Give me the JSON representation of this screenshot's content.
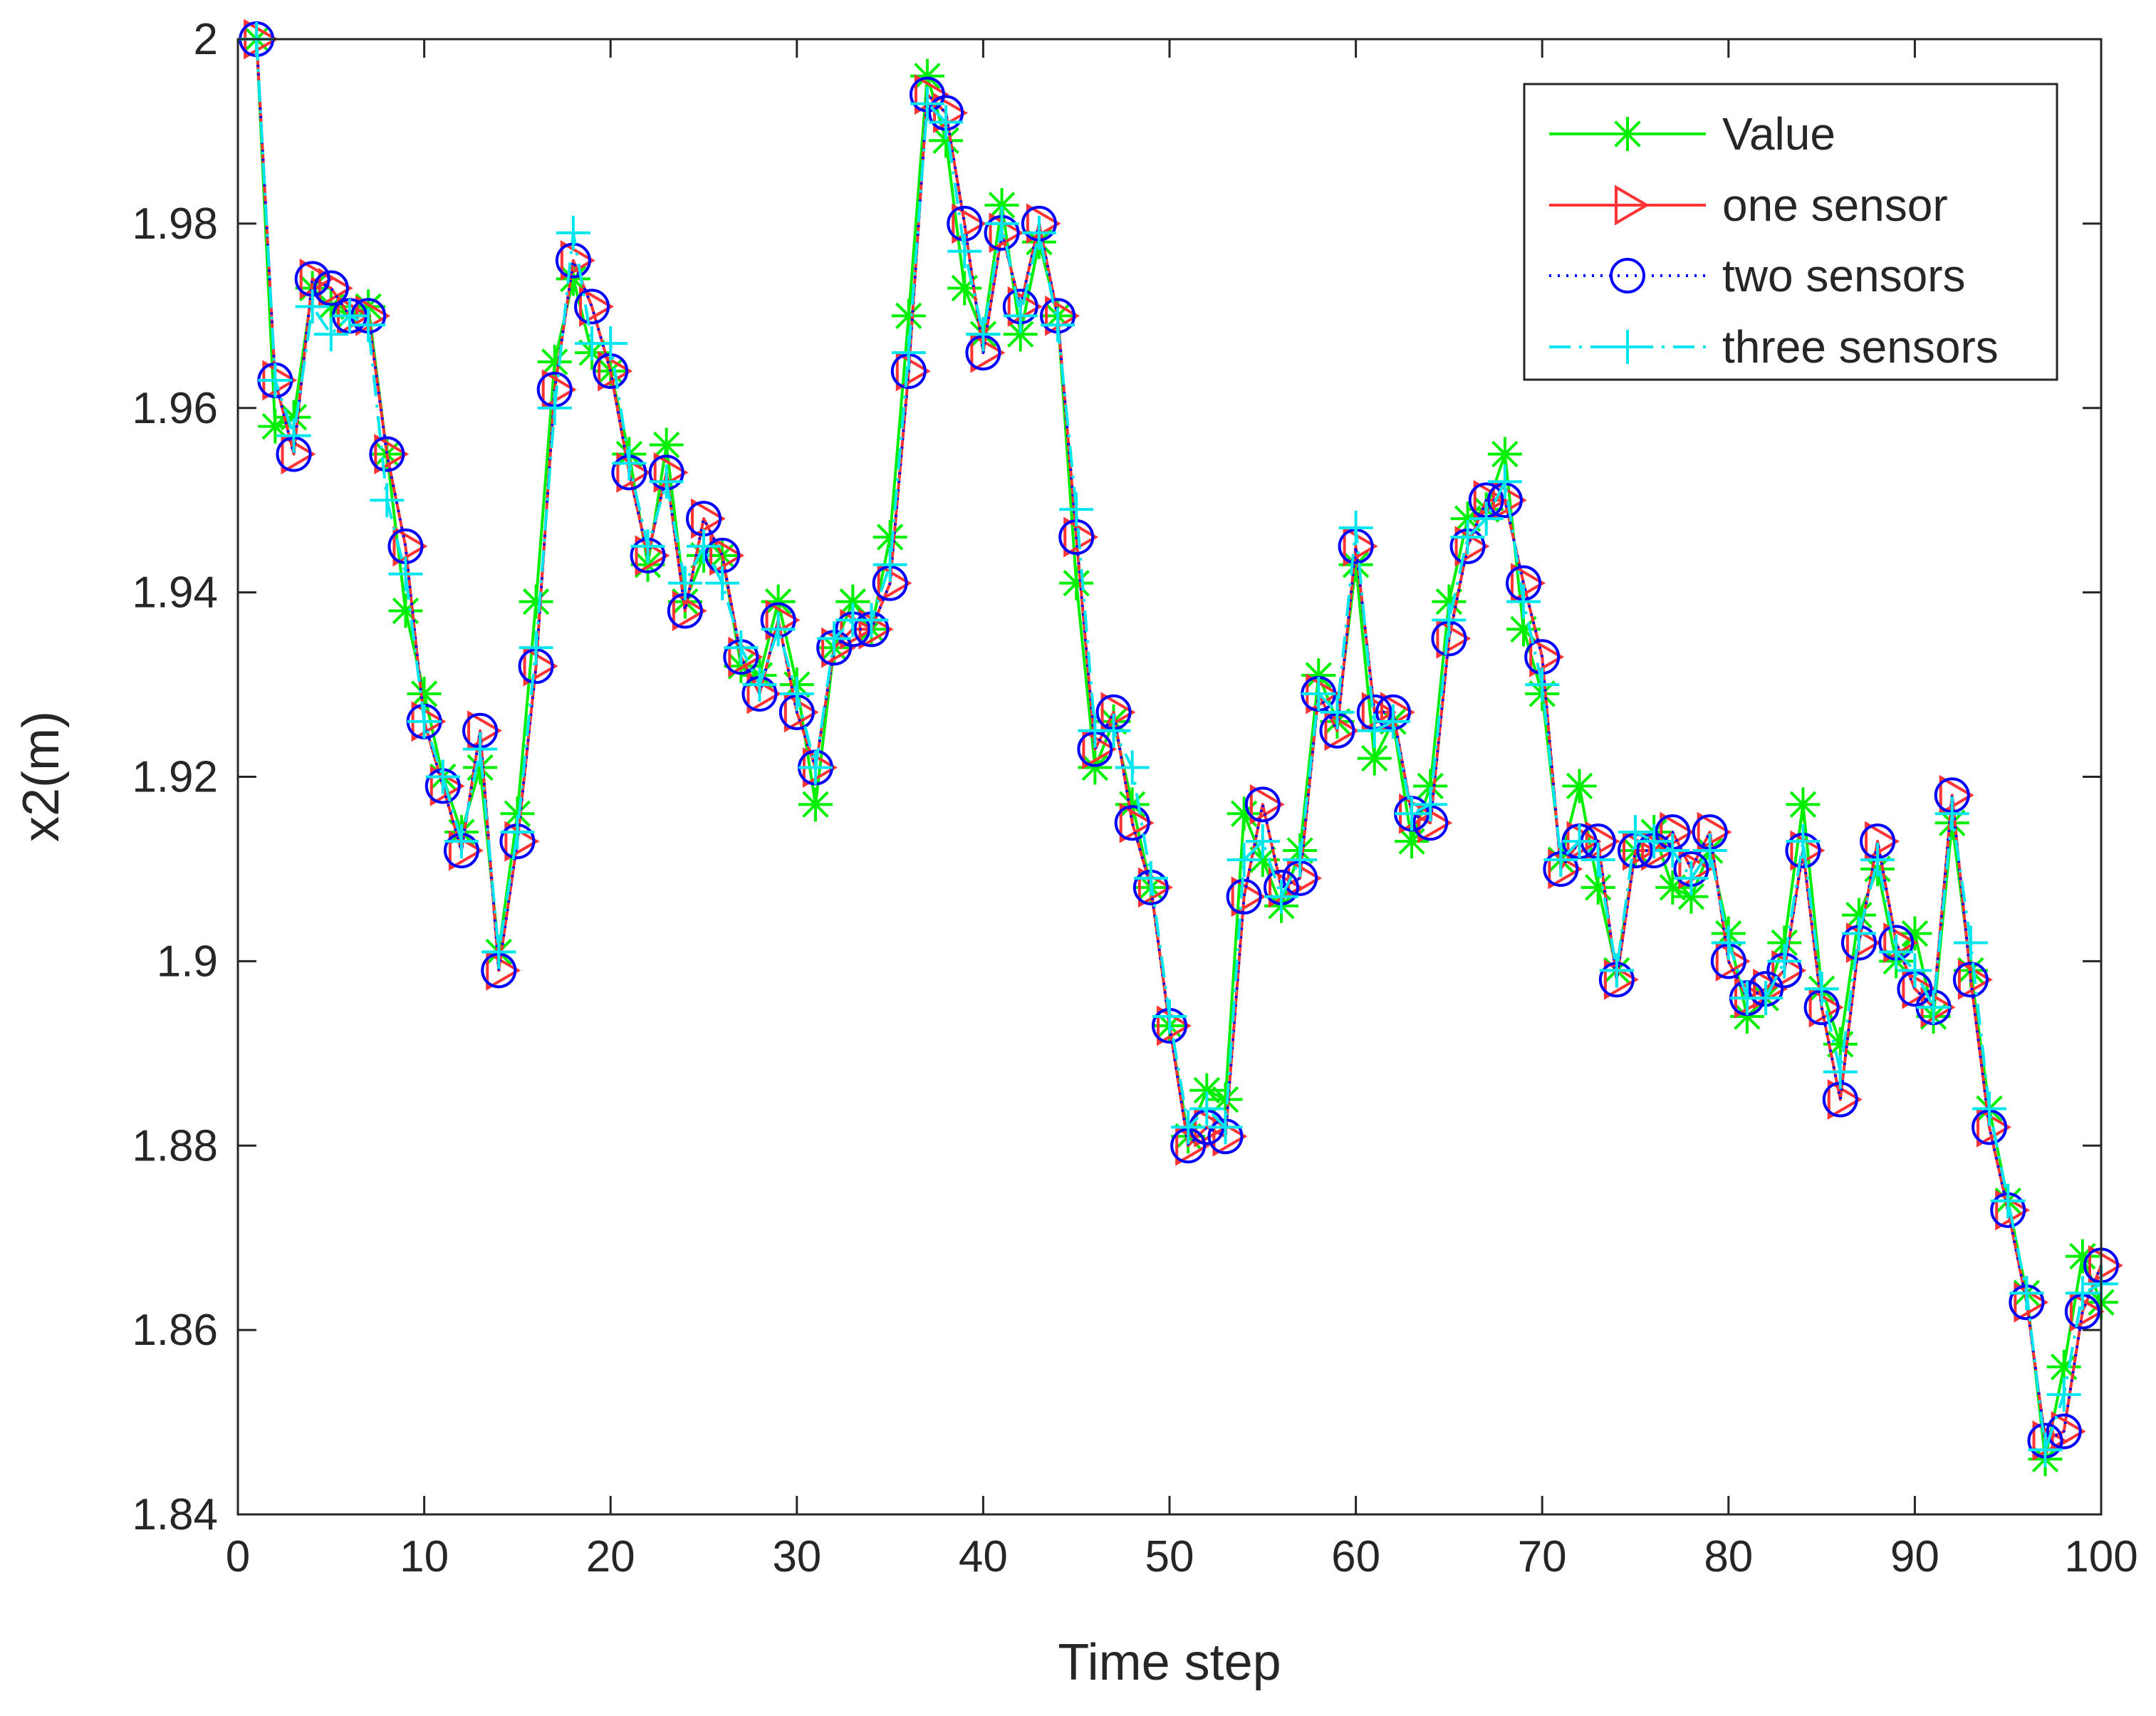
{
  "chart_data": {
    "type": "line",
    "title": "",
    "xlabel": "Time step",
    "ylabel": "x2(m)",
    "xlim": [
      0,
      100
    ],
    "ylim": [
      1.84,
      2.0
    ],
    "xticks": [
      0,
      10,
      20,
      30,
      40,
      50,
      60,
      70,
      80,
      90,
      100
    ],
    "xtick_labels": [
      "0",
      "10",
      "20",
      "30",
      "40",
      "50",
      "60",
      "70",
      "80",
      "90",
      "100"
    ],
    "yticks": [
      1.84,
      1.86,
      1.88,
      1.9,
      1.92,
      1.94,
      1.96,
      1.98,
      2.0
    ],
    "ytick_labels": [
      "1.84",
      "1.86",
      "1.88",
      "1.9",
      "1.92",
      "1.94",
      "1.96",
      "1.98",
      "2"
    ],
    "grid": false,
    "legend_position": "top-right",
    "x": [
      1,
      2,
      3,
      4,
      5,
      6,
      7,
      8,
      9,
      10,
      11,
      12,
      13,
      14,
      15,
      16,
      17,
      18,
      19,
      20,
      21,
      22,
      23,
      24,
      25,
      26,
      27,
      28,
      29,
      30,
      31,
      32,
      33,
      34,
      35,
      36,
      37,
      38,
      39,
      40,
      41,
      42,
      43,
      44,
      45,
      46,
      47,
      48,
      49,
      50,
      51,
      52,
      53,
      54,
      55,
      56,
      57,
      58,
      59,
      60,
      61,
      62,
      63,
      64,
      65,
      66,
      67,
      68,
      69,
      70,
      71,
      72,
      73,
      74,
      75,
      76,
      77,
      78,
      79,
      80,
      81,
      82,
      83,
      84,
      85,
      86,
      87,
      88,
      89,
      90,
      91,
      92,
      93,
      94,
      95,
      96,
      97,
      98,
      99,
      100
    ],
    "series": [
      {
        "name": "Value",
        "color": "#00ee00",
        "line_style": "solid",
        "marker": "asterisk",
        "values": [
          2.0,
          1.958,
          1.959,
          1.973,
          1.971,
          1.97,
          1.971,
          1.955,
          1.938,
          1.929,
          1.92,
          1.914,
          1.921,
          1.901,
          1.916,
          1.939,
          1.965,
          1.974,
          1.966,
          1.964,
          1.955,
          1.943,
          1.956,
          1.939,
          1.944,
          1.944,
          1.932,
          1.931,
          1.939,
          1.93,
          1.917,
          1.934,
          1.939,
          1.936,
          1.946,
          1.97,
          1.996,
          1.989,
          1.973,
          1.968,
          1.982,
          1.968,
          1.978,
          1.97,
          1.941,
          1.921,
          1.926,
          1.917,
          1.908,
          1.893,
          1.881,
          1.886,
          1.885,
          1.916,
          1.911,
          1.906,
          1.912,
          1.931,
          1.926,
          1.943,
          1.922,
          1.926,
          1.913,
          1.919,
          1.939,
          1.948,
          1.949,
          1.955,
          1.936,
          1.929,
          1.911,
          1.919,
          1.908,
          1.899,
          1.912,
          1.914,
          1.908,
          1.907,
          1.912,
          1.903,
          1.894,
          1.896,
          1.902,
          1.917,
          1.897,
          1.891,
          1.905,
          1.91,
          1.9,
          1.903,
          1.894,
          1.915,
          1.899,
          1.884,
          1.874,
          1.864,
          1.846,
          1.856,
          1.868,
          1.863
        ]
      },
      {
        "name": "one sensor",
        "color": "#ff3333",
        "line_style": "solid",
        "marker": "triangle-right",
        "values": [
          2.0,
          1.963,
          1.955,
          1.974,
          1.973,
          1.97,
          1.97,
          1.955,
          1.945,
          1.926,
          1.919,
          1.912,
          1.925,
          1.899,
          1.913,
          1.932,
          1.962,
          1.976,
          1.971,
          1.964,
          1.953,
          1.944,
          1.953,
          1.938,
          1.948,
          1.944,
          1.933,
          1.929,
          1.937,
          1.927,
          1.921,
          1.934,
          1.936,
          1.936,
          1.941,
          1.964,
          1.994,
          1.992,
          1.98,
          1.966,
          1.979,
          1.971,
          1.98,
          1.97,
          1.946,
          1.923,
          1.927,
          1.915,
          1.908,
          1.893,
          1.88,
          1.882,
          1.881,
          1.907,
          1.917,
          1.908,
          1.909,
          1.929,
          1.925,
          1.945,
          1.927,
          1.927,
          1.916,
          1.915,
          1.935,
          1.945,
          1.95,
          1.95,
          1.941,
          1.933,
          1.91,
          1.913,
          1.913,
          1.898,
          1.912,
          1.912,
          1.914,
          1.91,
          1.914,
          1.9,
          1.896,
          1.897,
          1.899,
          1.912,
          1.895,
          1.885,
          1.902,
          1.913,
          1.902,
          1.897,
          1.895,
          1.918,
          1.898,
          1.882,
          1.873,
          1.863,
          1.848,
          1.849,
          1.862,
          1.867
        ]
      },
      {
        "name": "two sensors",
        "color": "#0000ff",
        "line_style": "dotted",
        "marker": "circle",
        "values": [
          2.0,
          1.963,
          1.955,
          1.974,
          1.973,
          1.97,
          1.97,
          1.955,
          1.945,
          1.926,
          1.919,
          1.912,
          1.925,
          1.899,
          1.913,
          1.932,
          1.962,
          1.976,
          1.971,
          1.964,
          1.953,
          1.944,
          1.953,
          1.938,
          1.948,
          1.944,
          1.933,
          1.929,
          1.937,
          1.927,
          1.921,
          1.934,
          1.936,
          1.936,
          1.941,
          1.964,
          1.994,
          1.992,
          1.98,
          1.966,
          1.979,
          1.971,
          1.98,
          1.97,
          1.946,
          1.923,
          1.927,
          1.915,
          1.908,
          1.893,
          1.88,
          1.882,
          1.881,
          1.907,
          1.917,
          1.908,
          1.909,
          1.929,
          1.925,
          1.945,
          1.927,
          1.927,
          1.916,
          1.915,
          1.935,
          1.945,
          1.95,
          1.95,
          1.941,
          1.933,
          1.91,
          1.913,
          1.913,
          1.898,
          1.912,
          1.912,
          1.914,
          1.91,
          1.914,
          1.9,
          1.896,
          1.897,
          1.899,
          1.912,
          1.895,
          1.885,
          1.902,
          1.913,
          1.902,
          1.897,
          1.895,
          1.918,
          1.898,
          1.882,
          1.873,
          1.863,
          1.848,
          1.849,
          1.862,
          1.867
        ]
      },
      {
        "name": "three sensors",
        "color": "#00e5ee",
        "line_style": "dashdot",
        "marker": "plus",
        "values": [
          2.0,
          1.963,
          1.957,
          1.971,
          1.968,
          1.97,
          1.969,
          1.95,
          1.942,
          1.926,
          1.92,
          1.913,
          1.923,
          1.901,
          1.914,
          1.934,
          1.96,
          1.979,
          1.967,
          1.967,
          1.954,
          1.945,
          1.952,
          1.941,
          1.945,
          1.941,
          1.934,
          1.93,
          1.936,
          1.929,
          1.921,
          1.935,
          1.937,
          1.937,
          1.943,
          1.966,
          1.993,
          1.991,
          1.977,
          1.968,
          1.98,
          1.97,
          1.979,
          1.969,
          1.949,
          1.925,
          1.925,
          1.921,
          1.909,
          1.894,
          1.882,
          1.884,
          1.882,
          1.911,
          1.913,
          1.907,
          1.911,
          1.929,
          1.927,
          1.947,
          1.925,
          1.926,
          1.916,
          1.917,
          1.937,
          1.946,
          1.948,
          1.952,
          1.939,
          1.93,
          1.911,
          1.913,
          1.911,
          1.899,
          1.914,
          1.913,
          1.912,
          1.909,
          1.912,
          1.902,
          1.896,
          1.896,
          1.9,
          1.913,
          1.897,
          1.888,
          1.903,
          1.911,
          1.901,
          1.899,
          1.895,
          1.916,
          1.902,
          1.884,
          1.874,
          1.864,
          1.847,
          1.853,
          1.864,
          1.865
        ]
      }
    ]
  }
}
